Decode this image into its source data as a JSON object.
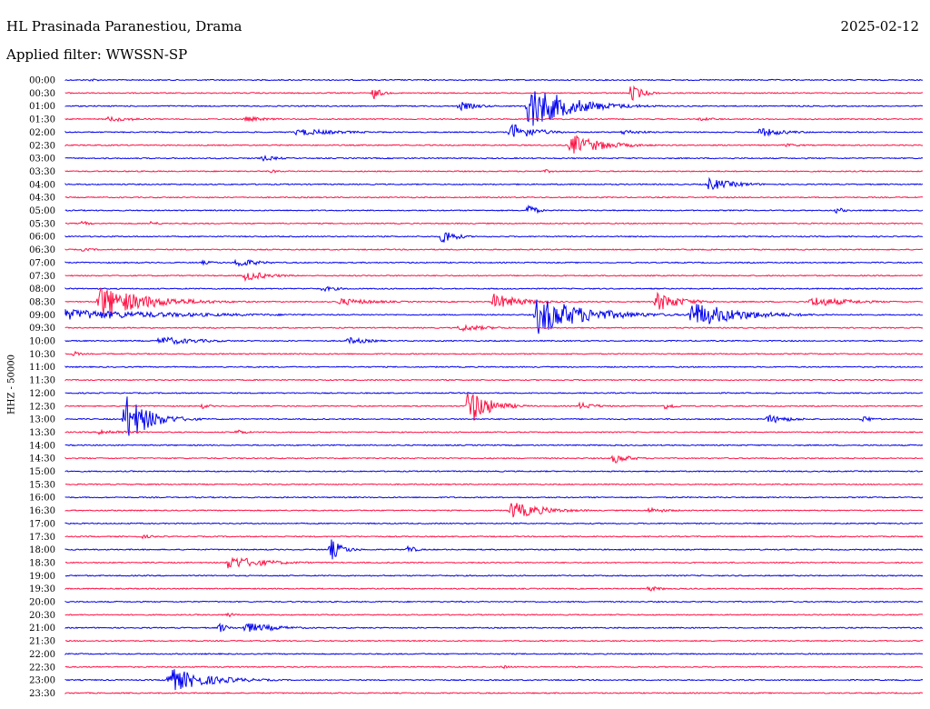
{
  "header": {
    "station": "HL Prasinada Paranestiou, Drama",
    "date": "2025-02-12",
    "filter_label": "Applied filter: WWSSN-SP"
  },
  "channel_label": "HHZ - 50000",
  "colors": {
    "odd": "#0000ee",
    "even": "#ff1144"
  },
  "chart_data": {
    "type": "line",
    "title": "HL Prasinada Paranestiou, Drama",
    "ylabel": "HHZ - 50000",
    "xlabel": "",
    "rows": [
      {
        "label": "00:00",
        "color": "blue",
        "events": [
          {
            "t": 0.03,
            "a": 2,
            "d": 0.02
          }
        ]
      },
      {
        "label": "00:30",
        "color": "red",
        "events": [
          {
            "t": 0.36,
            "a": 7,
            "d": 0.02
          },
          {
            "t": 0.66,
            "a": 10,
            "d": 0.03
          }
        ]
      },
      {
        "label": "01:00",
        "color": "blue",
        "events": [
          {
            "t": 0.46,
            "a": 5,
            "d": 0.05
          },
          {
            "t": 0.54,
            "a": 26,
            "d": 0.1
          }
        ]
      },
      {
        "label": "01:30",
        "color": "red",
        "events": [
          {
            "t": 0.05,
            "a": 3,
            "d": 0.08
          },
          {
            "t": 0.21,
            "a": 3,
            "d": 0.06
          },
          {
            "t": 0.74,
            "a": 2,
            "d": 0.06
          }
        ]
      },
      {
        "label": "02:00",
        "color": "blue",
        "events": [
          {
            "t": 0.27,
            "a": 4,
            "d": 0.12
          },
          {
            "t": 0.52,
            "a": 10,
            "d": 0.06
          },
          {
            "t": 0.65,
            "a": 3,
            "d": 0.06
          },
          {
            "t": 0.81,
            "a": 5,
            "d": 0.07
          }
        ]
      },
      {
        "label": "02:30",
        "color": "red",
        "events": [
          {
            "t": 0.59,
            "a": 12,
            "d": 0.08
          },
          {
            "t": 0.84,
            "a": 2,
            "d": 0.05
          }
        ]
      },
      {
        "label": "03:00",
        "color": "blue",
        "events": [
          {
            "t": 0.23,
            "a": 3,
            "d": 0.05
          }
        ]
      },
      {
        "label": "03:30",
        "color": "red",
        "events": [
          {
            "t": 0.24,
            "a": 2,
            "d": 0.03
          },
          {
            "t": 0.56,
            "a": 2,
            "d": 0.03
          }
        ]
      },
      {
        "label": "04:00",
        "color": "blue",
        "events": [
          {
            "t": 0.75,
            "a": 7,
            "d": 0.07
          }
        ]
      },
      {
        "label": "04:30",
        "color": "red",
        "events": []
      },
      {
        "label": "05:00",
        "color": "blue",
        "events": [
          {
            "t": 0.54,
            "a": 8,
            "d": 0.02
          },
          {
            "t": 0.9,
            "a": 4,
            "d": 0.02
          }
        ]
      },
      {
        "label": "05:30",
        "color": "red",
        "events": [
          {
            "t": 0.02,
            "a": 3,
            "d": 0.02
          },
          {
            "t": 0.1,
            "a": 3,
            "d": 0.02
          }
        ]
      },
      {
        "label": "06:00",
        "color": "blue",
        "events": [
          {
            "t": 0.44,
            "a": 10,
            "d": 0.03
          }
        ]
      },
      {
        "label": "06:30",
        "color": "red",
        "events": [
          {
            "t": 0.02,
            "a": 2,
            "d": 0.04
          }
        ]
      },
      {
        "label": "07:00",
        "color": "blue",
        "events": [
          {
            "t": 0.16,
            "a": 2,
            "d": 0.05
          },
          {
            "t": 0.2,
            "a": 6,
            "d": 0.05
          }
        ]
      },
      {
        "label": "07:30",
        "color": "red",
        "events": [
          {
            "t": 0.21,
            "a": 6,
            "d": 0.06
          }
        ]
      },
      {
        "label": "08:00",
        "color": "blue",
        "events": [
          {
            "t": 0.3,
            "a": 3,
            "d": 0.05
          }
        ]
      },
      {
        "label": "08:30",
        "color": "red",
        "events": [
          {
            "t": 0.04,
            "a": 18,
            "d": 0.12
          },
          {
            "t": 0.32,
            "a": 4,
            "d": 0.1
          },
          {
            "t": 0.5,
            "a": 9,
            "d": 0.07
          },
          {
            "t": 0.69,
            "a": 11,
            "d": 0.06
          },
          {
            "t": 0.87,
            "a": 6,
            "d": 0.1
          }
        ]
      },
      {
        "label": "09:00",
        "color": "blue",
        "events": [
          {
            "t": 0.0,
            "a": 6,
            "d": 0.3
          },
          {
            "t": 0.55,
            "a": 22,
            "d": 0.12
          },
          {
            "t": 0.73,
            "a": 15,
            "d": 0.12
          }
        ]
      },
      {
        "label": "09:30",
        "color": "red",
        "events": [
          {
            "t": 0.46,
            "a": 4,
            "d": 0.08
          }
        ]
      },
      {
        "label": "10:00",
        "color": "blue",
        "events": [
          {
            "t": 0.11,
            "a": 5,
            "d": 0.1
          },
          {
            "t": 0.33,
            "a": 4,
            "d": 0.06
          }
        ]
      },
      {
        "label": "10:30",
        "color": "red",
        "events": [
          {
            "t": 0.01,
            "a": 3,
            "d": 0.02
          }
        ]
      },
      {
        "label": "11:00",
        "color": "blue",
        "events": []
      },
      {
        "label": "11:30",
        "color": "red",
        "events": []
      },
      {
        "label": "12:00",
        "color": "blue",
        "events": []
      },
      {
        "label": "12:30",
        "color": "red",
        "events": [
          {
            "t": 0.16,
            "a": 3,
            "d": 0.02
          },
          {
            "t": 0.47,
            "a": 22,
            "d": 0.05
          },
          {
            "t": 0.6,
            "a": 4,
            "d": 0.05
          },
          {
            "t": 0.7,
            "a": 4,
            "d": 0.03
          }
        ]
      },
      {
        "label": "13:00",
        "color": "blue",
        "events": [
          {
            "t": 0.07,
            "a": 28,
            "d": 0.06
          },
          {
            "t": 0.82,
            "a": 5,
            "d": 0.06
          },
          {
            "t": 0.93,
            "a": 4,
            "d": 0.03
          }
        ]
      },
      {
        "label": "13:30",
        "color": "red",
        "events": [
          {
            "t": 0.04,
            "a": 3,
            "d": 0.08
          },
          {
            "t": 0.2,
            "a": 3,
            "d": 0.03
          }
        ]
      },
      {
        "label": "14:00",
        "color": "blue",
        "events": []
      },
      {
        "label": "14:30",
        "color": "red",
        "events": [
          {
            "t": 0.64,
            "a": 6,
            "d": 0.04
          }
        ]
      },
      {
        "label": "15:00",
        "color": "blue",
        "events": []
      },
      {
        "label": "15:30",
        "color": "red",
        "events": []
      },
      {
        "label": "16:00",
        "color": "blue",
        "events": []
      },
      {
        "label": "16:30",
        "color": "red",
        "events": [
          {
            "t": 0.52,
            "a": 10,
            "d": 0.08
          },
          {
            "t": 0.68,
            "a": 3,
            "d": 0.06
          }
        ]
      },
      {
        "label": "17:00",
        "color": "blue",
        "events": []
      },
      {
        "label": "17:30",
        "color": "red",
        "events": [
          {
            "t": 0.09,
            "a": 2,
            "d": 0.05
          }
        ]
      },
      {
        "label": "18:00",
        "color": "blue",
        "events": [
          {
            "t": 0.31,
            "a": 12,
            "d": 0.03
          },
          {
            "t": 0.4,
            "a": 5,
            "d": 0.02
          }
        ]
      },
      {
        "label": "18:30",
        "color": "red",
        "events": [
          {
            "t": 0.19,
            "a": 8,
            "d": 0.09
          }
        ]
      },
      {
        "label": "19:00",
        "color": "blue",
        "events": []
      },
      {
        "label": "19:30",
        "color": "red",
        "events": [
          {
            "t": 0.68,
            "a": 3,
            "d": 0.04
          }
        ]
      },
      {
        "label": "20:00",
        "color": "blue",
        "events": []
      },
      {
        "label": "20:30",
        "color": "red",
        "events": [
          {
            "t": 0.19,
            "a": 3,
            "d": 0.02
          }
        ]
      },
      {
        "label": "21:00",
        "color": "blue",
        "events": [
          {
            "t": 0.18,
            "a": 6,
            "d": 0.02
          },
          {
            "t": 0.21,
            "a": 6,
            "d": 0.08
          }
        ]
      },
      {
        "label": "21:30",
        "color": "red",
        "events": []
      },
      {
        "label": "22:00",
        "color": "blue",
        "events": []
      },
      {
        "label": "22:30",
        "color": "red",
        "events": [
          {
            "t": 0.51,
            "a": 2,
            "d": 0.03
          }
        ]
      },
      {
        "label": "23:00",
        "color": "blue",
        "events": [
          {
            "t": 0.12,
            "a": 14,
            "d": 0.1
          }
        ]
      },
      {
        "label": "23:30",
        "color": "red",
        "events": []
      }
    ]
  }
}
